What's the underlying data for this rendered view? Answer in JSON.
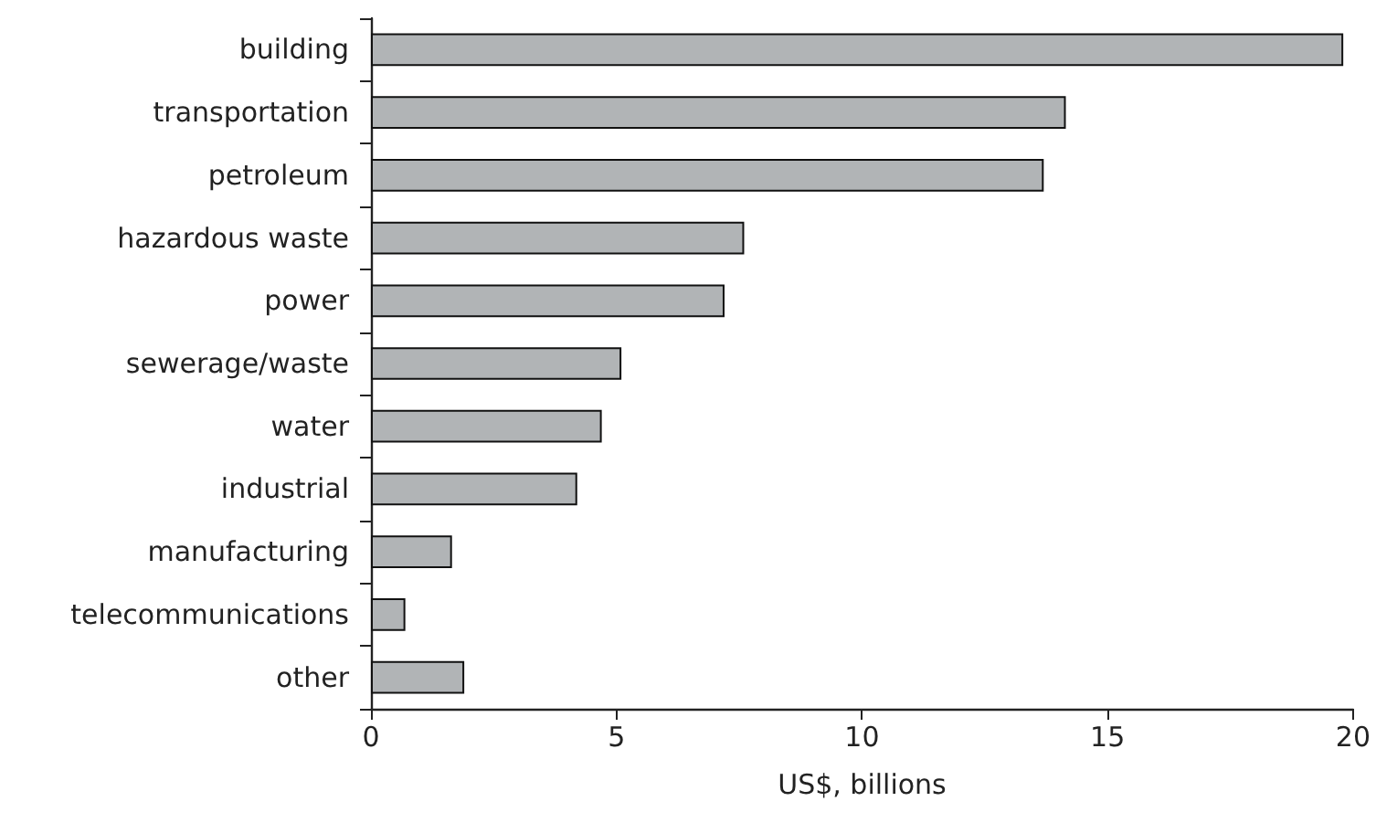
{
  "chart_data": {
    "type": "bar",
    "orientation": "horizontal",
    "xlabel": "US$, billions",
    "categories": [
      "building",
      "transportation",
      "petroleum",
      "hazardous waste",
      "power",
      "sewerage/waste",
      "water",
      "industrial",
      "manufacturing",
      "telecommunications",
      "other"
    ],
    "values": [
      19.8,
      14.15,
      13.7,
      7.6,
      7.2,
      5.1,
      4.7,
      4.2,
      1.65,
      0.7,
      1.9
    ],
    "color": "#b1b4b6",
    "xlim": [
      0,
      20
    ],
    "xticks": [
      0,
      5,
      10,
      15,
      20
    ]
  }
}
